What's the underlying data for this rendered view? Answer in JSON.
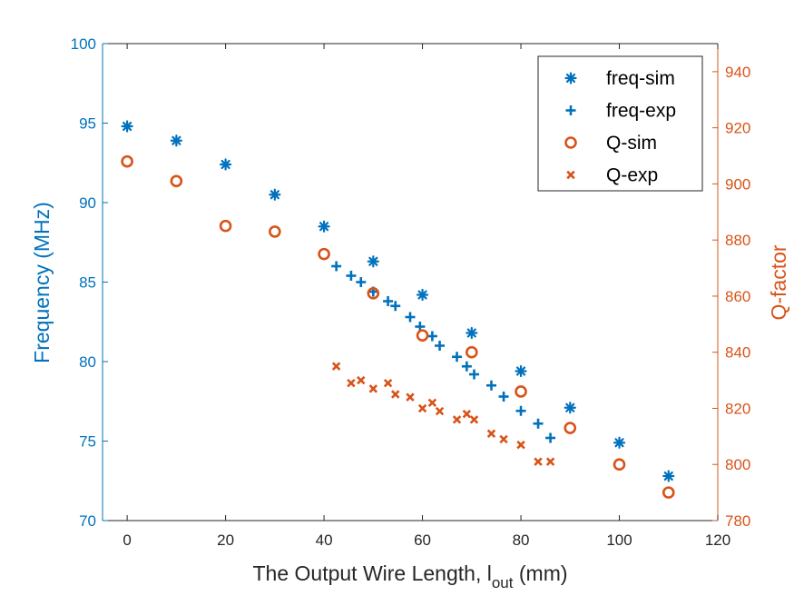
{
  "chart_data": {
    "type": "scatter",
    "xlabel_main": "The Output Wire Length, l",
    "xlabel_sub": "out",
    "xlabel_unit": " (mm)",
    "ylabel_left": "Frequency (MHz)",
    "ylabel_right": "Q-factor",
    "xlim": [
      -5,
      120
    ],
    "ylim_left": [
      70,
      100
    ],
    "ylim_right": [
      780,
      950
    ],
    "xticks": [
      0,
      20,
      40,
      60,
      80,
      100,
      120
    ],
    "yticks_left": [
      70,
      75,
      80,
      85,
      90,
      95,
      100
    ],
    "yticks_right": [
      780,
      800,
      820,
      840,
      860,
      880,
      900,
      920,
      940
    ],
    "grid": false,
    "legend_position": "top-right",
    "colors": {
      "freq": "#0072BD",
      "q": "#D95319"
    },
    "series": [
      {
        "name": "freq-sim",
        "axis": "left",
        "marker": "asterisk",
        "x": [
          0,
          10,
          20,
          30,
          40,
          50,
          60,
          70,
          80,
          90,
          100,
          110
        ],
        "y": [
          94.8,
          93.9,
          92.4,
          90.5,
          88.5,
          86.3,
          84.2,
          81.8,
          79.4,
          77.1,
          74.9,
          72.8
        ]
      },
      {
        "name": "freq-exp",
        "axis": "left",
        "marker": "plus",
        "x": [
          42.5,
          45.5,
          47.5,
          50,
          53,
          54.5,
          57.5,
          59.5,
          62,
          63.5,
          67,
          69,
          70.5,
          74,
          76.5,
          80,
          83.5,
          86
        ],
        "y": [
          86.0,
          85.4,
          85.0,
          84.4,
          83.8,
          83.5,
          82.8,
          82.2,
          81.6,
          81.0,
          80.3,
          79.7,
          79.2,
          78.5,
          77.8,
          76.9,
          76.1,
          75.2
        ]
      },
      {
        "name": "Q-sim",
        "axis": "right",
        "marker": "circle",
        "x": [
          0,
          10,
          20,
          30,
          40,
          50,
          60,
          70,
          80,
          90,
          100,
          110
        ],
        "y": [
          908,
          901,
          885,
          883,
          875,
          861,
          846,
          840,
          826,
          813,
          800,
          790
        ]
      },
      {
        "name": "Q-exp",
        "axis": "right",
        "marker": "x",
        "x": [
          42.5,
          45.5,
          47.5,
          50,
          53,
          54.5,
          57.5,
          60,
          62,
          63.5,
          67,
          69,
          70.5,
          74,
          76.5,
          80,
          83.5,
          86
        ],
        "y": [
          835,
          829,
          830,
          827,
          829,
          825,
          824,
          820,
          822,
          819,
          816,
          818,
          816,
          811,
          809,
          807,
          801,
          801
        ]
      }
    ]
  }
}
